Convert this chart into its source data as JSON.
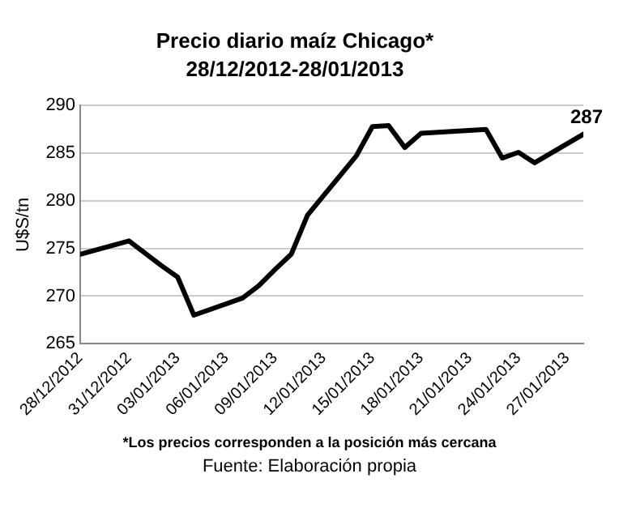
{
  "chart_data": {
    "type": "line",
    "title": "Precio diario maíz Chicago*",
    "subtitle": "28/12/2012-28/01/2013",
    "ylabel": "U$S/tn",
    "x": [
      "2012-12-28",
      "2012-12-31",
      "2013-01-02",
      "2013-01-03",
      "2013-01-04",
      "2013-01-07",
      "2013-01-08",
      "2013-01-09",
      "2013-01-10",
      "2013-01-11",
      "2013-01-14",
      "2013-01-15",
      "2013-01-16",
      "2013-01-17",
      "2013-01-18",
      "2013-01-22",
      "2013-01-23",
      "2013-01-24",
      "2013-01-25",
      "2013-01-28"
    ],
    "series": [
      {
        "color": "#000000",
        "values": [
          274.4,
          275.8,
          273.2,
          272.0,
          268.0,
          269.8,
          271.1,
          272.8,
          274.4,
          278.5,
          284.7,
          287.8,
          287.9,
          285.6,
          287.1,
          287.5,
          284.5,
          285.1,
          284.0,
          287
        ],
        "value_labels": [
          null,
          null,
          null,
          null,
          null,
          null,
          null,
          null,
          null,
          null,
          null,
          null,
          null,
          null,
          null,
          null,
          null,
          null,
          null,
          "287"
        ]
      }
    ],
    "xlim": [
      "2012-12-28",
      "2013-01-28"
    ],
    "xticks": [
      {
        "value": "2012-12-28",
        "label": "28/12/2012"
      },
      {
        "value": "2012-12-31",
        "label": "31/12/2012"
      },
      {
        "value": "2013-01-03",
        "label": "03/01/2013"
      },
      {
        "value": "2013-01-06",
        "label": "06/01/2013"
      },
      {
        "value": "2013-01-09",
        "label": "09/01/2013"
      },
      {
        "value": "2013-01-12",
        "label": "12/01/2013"
      },
      {
        "value": "2013-01-15",
        "label": "15/01/2013"
      },
      {
        "value": "2013-01-18",
        "label": "18/01/2013"
      },
      {
        "value": "2013-01-21",
        "label": "21/01/2013"
      },
      {
        "value": "2013-01-24",
        "label": "24/01/2013"
      },
      {
        "value": "2013-01-27",
        "label": "27/01/2013"
      }
    ],
    "ylim": [
      265,
      290
    ],
    "yticks": [
      265,
      270,
      275,
      280,
      285,
      290
    ],
    "grid": "y",
    "legend": false,
    "marker": "none",
    "line_style": "solid",
    "annotations": [
      "*Los precios corresponden a la posición más cercana",
      "Fuente: Elaboración propia"
    ]
  }
}
